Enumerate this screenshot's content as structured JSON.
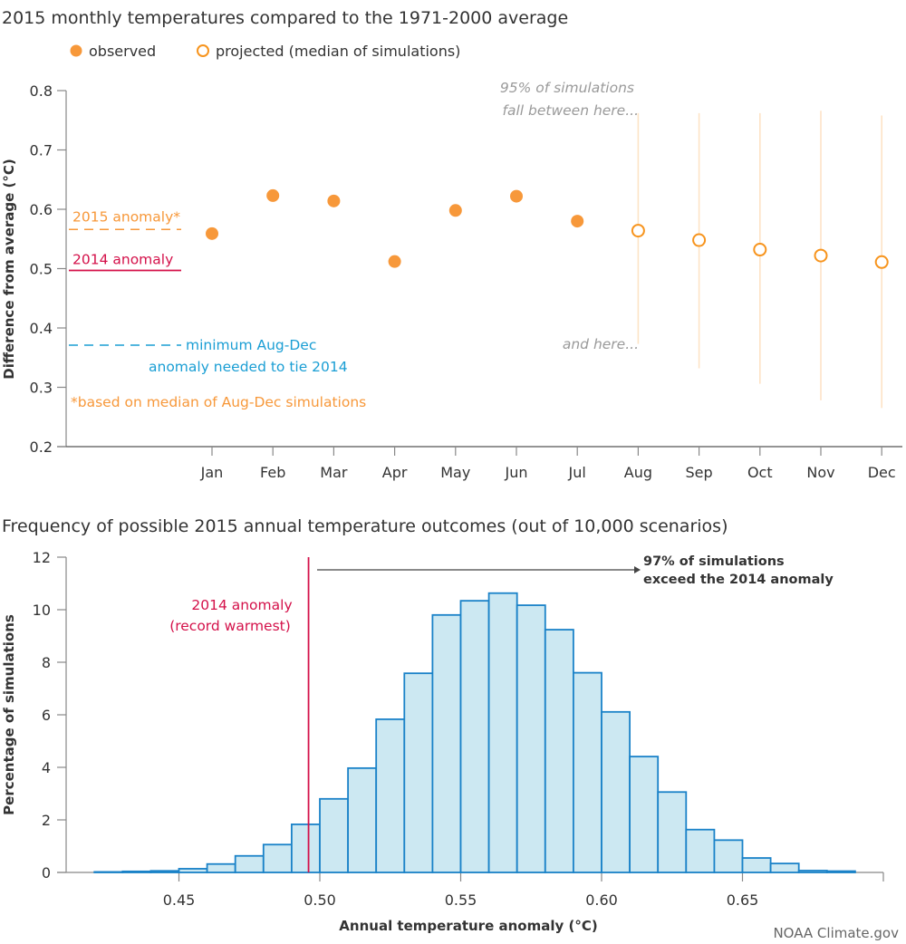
{
  "colors": {
    "observed": "#f7983a",
    "projected": "#f7941d",
    "range_line": "#fde3c6",
    "anomaly_2015": "#f7983a",
    "anomaly_2014": "#d4114a",
    "min_needed": "#1a9ed4",
    "hist_fill": "#cce8f2",
    "hist_stroke": "#1a82c8",
    "axis": "#888888",
    "annotation_gray": "#9a9a9a"
  },
  "credit": "NOAA Climate.gov",
  "chart_data": [
    {
      "type": "scatter",
      "title": "2015 monthly temperatures compared to the 1971-2000 average",
      "legend": {
        "placement": "top-left",
        "items": [
          {
            "label": "observed",
            "marker": "filled-circle"
          },
          {
            "label": "projected (median of simulations)",
            "marker": "open-circle"
          }
        ]
      },
      "xlabel": "",
      "ylabel": "Difference from average (°C)",
      "ylim": [
        0.2,
        0.8
      ],
      "yticks": [
        "0.2",
        "0.3",
        "0.4",
        "0.5",
        "0.6",
        "0.7",
        "0.8"
      ],
      "categories": [
        "Jan",
        "Feb",
        "Mar",
        "Apr",
        "May",
        "Jun",
        "Jul",
        "Aug",
        "Sep",
        "Oct",
        "Nov",
        "Dec"
      ],
      "series": [
        {
          "name": "observed",
          "x": [
            "Jan",
            "Feb",
            "Mar",
            "Apr",
            "May",
            "Jun",
            "Jul"
          ],
          "values": [
            0.559,
            0.623,
            0.614,
            0.512,
            0.598,
            0.622,
            0.58
          ]
        },
        {
          "name": "projected (median of simulations)",
          "x": [
            "Aug",
            "Sep",
            "Oct",
            "Nov",
            "Dec"
          ],
          "values": [
            0.564,
            0.548,
            0.532,
            0.522,
            0.511
          ],
          "range_95_high": [
            0.762,
            0.762,
            0.762,
            0.766,
            0.758
          ],
          "range_95_low": [
            0.373,
            0.332,
            0.306,
            0.278,
            0.265
          ]
        }
      ],
      "reference_lines": [
        {
          "label": "2015 anomaly*",
          "value": 0.566,
          "style": "dashed",
          "color_key": "anomaly_2015"
        },
        {
          "label": "2014 anomaly",
          "value": 0.497,
          "style": "solid",
          "color_key": "anomaly_2014"
        },
        {
          "label": "minimum Aug-Dec",
          "label2": "anomaly needed to tie 2014",
          "value": 0.371,
          "style": "dashed",
          "color_key": "min_needed"
        }
      ],
      "annotations": {
        "range_top_1": "95% of simulations",
        "range_top_2": "fall between here...",
        "range_bottom": "and here...",
        "footnote": "*based on median of Aug-Dec simulations"
      },
      "grid": false
    },
    {
      "type": "bar",
      "subtype": "histogram",
      "title": "Frequency of possible 2015 annual temperature outcomes (out of 10,000 scenarios)",
      "xlabel": "Annual temperature anomaly (°C)",
      "ylabel": "Percentage of simulations",
      "xlim": [
        0.41,
        0.7
      ],
      "ylim": [
        0,
        12
      ],
      "xticks": [
        "0.45",
        "0.50",
        "0.55",
        "0.60",
        "0.65"
      ],
      "yticks": [
        "0",
        "2",
        "4",
        "6",
        "8",
        "10",
        "12"
      ],
      "bin_width": 0.01,
      "bin_starts": [
        0.42,
        0.43,
        0.44,
        0.45,
        0.46,
        0.47,
        0.48,
        0.49,
        0.5,
        0.51,
        0.52,
        0.53,
        0.54,
        0.55,
        0.56,
        0.57,
        0.58,
        0.59,
        0.6,
        0.61,
        0.62,
        0.63,
        0.64,
        0.65,
        0.66,
        0.67,
        0.68
      ],
      "values": [
        0.02,
        0.04,
        0.06,
        0.14,
        0.32,
        0.63,
        1.06,
        1.83,
        2.8,
        3.97,
        5.83,
        7.58,
        9.8,
        10.34,
        10.63,
        10.17,
        9.24,
        7.6,
        6.11,
        4.41,
        3.06,
        1.63,
        1.23,
        0.55,
        0.34,
        0.07,
        0.05
      ],
      "reference_line": {
        "value": 0.496,
        "label1": "2014 anomaly",
        "label2": "(record warmest)"
      },
      "arrow_annotation": {
        "label1": "97% of simulations",
        "label2": "exceed the 2014 anomaly"
      },
      "grid": false,
      "legend": "none"
    }
  ]
}
